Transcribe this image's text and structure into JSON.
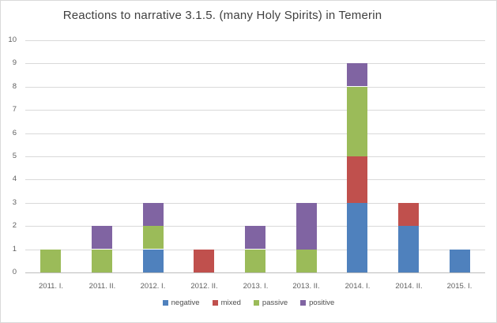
{
  "chart_data": {
    "type": "bar",
    "stacked": true,
    "title": "Reactions to narrative 3.1.5. (many Holy Spirits) in Temerin",
    "categories": [
      "2011. I.",
      "2011. II.",
      "2012. I.",
      "2012. II.",
      "2013. I.",
      "2013. II.",
      "2014. I.",
      "2014. II.",
      "2015. I."
    ],
    "series": [
      {
        "name": "negative",
        "color": "#4F81BD",
        "values": [
          0,
          0,
          1,
          0,
          0,
          0,
          3,
          2,
          1
        ]
      },
      {
        "name": "mixed",
        "color": "#C0504D",
        "values": [
          0,
          0,
          0,
          1,
          0,
          0,
          2,
          1,
          0
        ]
      },
      {
        "name": "passive",
        "color": "#9BBB59",
        "values": [
          1,
          1,
          1,
          0,
          1,
          1,
          3,
          0,
          0
        ]
      },
      {
        "name": "positive",
        "color": "#8064A2",
        "values": [
          0,
          1,
          1,
          0,
          1,
          2,
          1,
          0,
          0
        ]
      }
    ],
    "totals": [
      1,
      2,
      3,
      1,
      2,
      3,
      9,
      3,
      1
    ],
    "xlabel": "",
    "ylabel": "",
    "ylim": [
      0,
      10
    ],
    "ytick_step": 1,
    "grid": "horizontal",
    "legend_position": "bottom"
  }
}
